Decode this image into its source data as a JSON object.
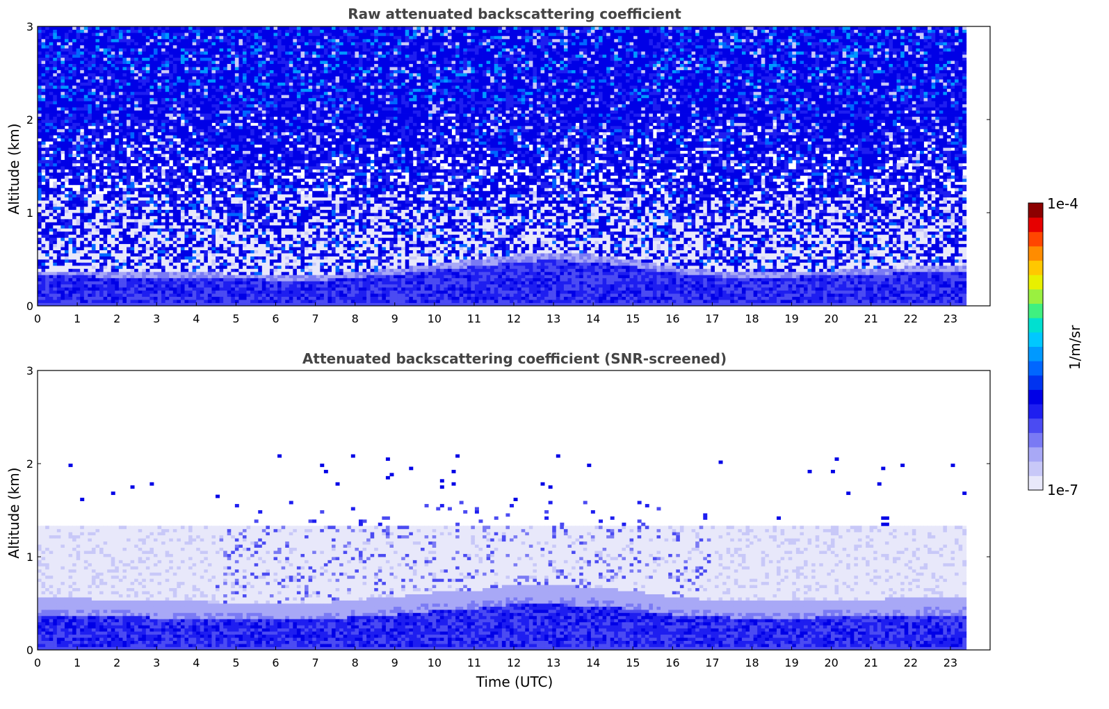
{
  "colors": {
    "background": "#ffffff",
    "title_color": "#444444",
    "colormap": [
      "#e8e8fa",
      "#c8c8f8",
      "#a8a8f6",
      "#7a7af4",
      "#4b4bf2",
      "#1e1ef0",
      "#0000e6",
      "#0033f0",
      "#0066ff",
      "#0099ff",
      "#00c8ff",
      "#00e0d0",
      "#40f080",
      "#9af040",
      "#e8f000",
      "#ffc800",
      "#ff8c00",
      "#ff4600",
      "#e60000",
      "#8c0000"
    ]
  },
  "chart_data": [
    {
      "type": "heatmap",
      "title": "Raw attenuated backscattering coefficient",
      "xlabel": "",
      "ylabel": "Altitude (km)",
      "xlim": [
        0,
        24
      ],
      "ylim": [
        0,
        3
      ],
      "data_xmax": 23.4,
      "xticks": [
        "0",
        "1",
        "2",
        "3",
        "4",
        "5",
        "6",
        "7",
        "8",
        "9",
        "10",
        "11",
        "12",
        "13",
        "14",
        "15",
        "16",
        "17",
        "18",
        "19",
        "20",
        "21",
        "22",
        "23"
      ],
      "yticks": [
        "0",
        "1",
        "2",
        "3"
      ],
      "boundary_layer_top_km": {
        "time": [
          0,
          2,
          4,
          6,
          7,
          8,
          9,
          10,
          11,
          12,
          13,
          14,
          15,
          16,
          17,
          18,
          19,
          20,
          21,
          22,
          23,
          23.4
        ],
        "value": [
          0.38,
          0.37,
          0.36,
          0.33,
          0.32,
          0.36,
          0.4,
          0.45,
          0.5,
          0.55,
          0.58,
          0.55,
          0.5,
          0.42,
          0.38,
          0.35,
          0.37,
          0.38,
          0.4,
          0.42,
          0.42,
          0.42
        ]
      },
      "noise": "high"
    },
    {
      "type": "heatmap",
      "title": "Attenuated backscattering coefficient (SNR-screened)",
      "xlabel": "Time (UTC)",
      "ylabel": "Altitude (km)",
      "xlim": [
        0,
        24
      ],
      "ylim": [
        0,
        3
      ],
      "data_xmax": 23.4,
      "xticks": [
        "0",
        "1",
        "2",
        "3",
        "4",
        "5",
        "6",
        "7",
        "8",
        "9",
        "10",
        "11",
        "12",
        "13",
        "14",
        "15",
        "16",
        "17",
        "18",
        "19",
        "20",
        "21",
        "22",
        "23"
      ],
      "yticks": [
        "0",
        "1",
        "2",
        "3"
      ],
      "boundary_layer_top_km": {
        "time": [
          0,
          2,
          4,
          6,
          7,
          8,
          9,
          10,
          11,
          12,
          13,
          14,
          15,
          16,
          17,
          18,
          19,
          20,
          21,
          22,
          23,
          23.4
        ],
        "value": [
          0.45,
          0.42,
          0.4,
          0.38,
          0.38,
          0.42,
          0.45,
          0.5,
          0.52,
          0.58,
          0.58,
          0.55,
          0.52,
          0.45,
          0.42,
          0.4,
          0.4,
          0.42,
          0.42,
          0.45,
          0.45,
          0.45
        ]
      },
      "aerosol_layer_top_km": 1.35,
      "noise": "screened"
    }
  ],
  "colorbar": {
    "label": "1/m/sr",
    "max_label": "1e-4",
    "min_label": "1e-7",
    "range": [
      1e-07,
      0.0001
    ],
    "scale": "log"
  }
}
